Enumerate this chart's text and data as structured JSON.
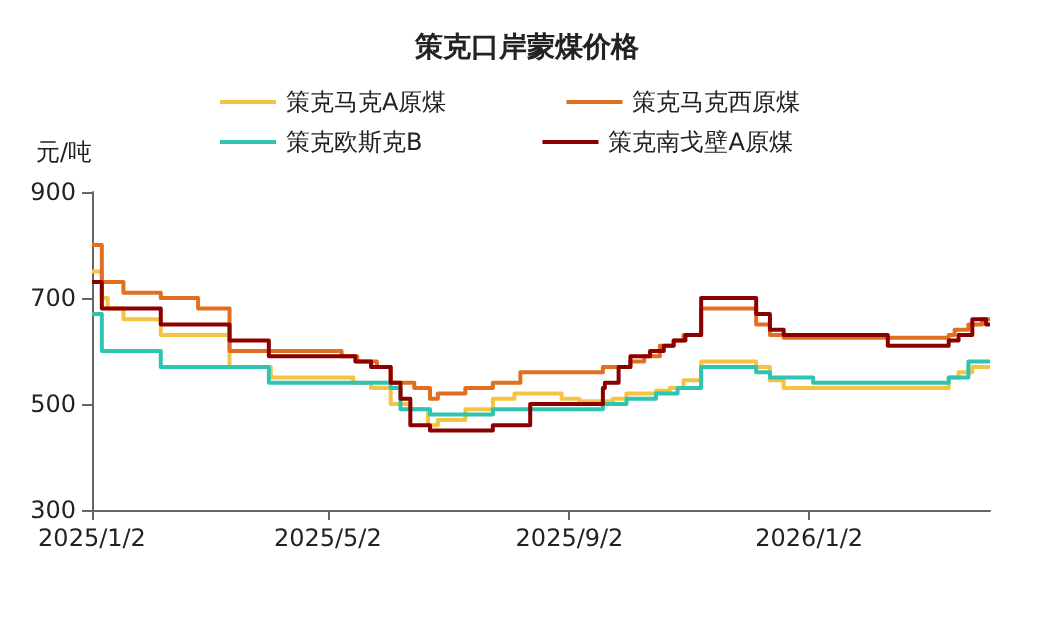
{
  "chart_data": {
    "type": "step",
    "title": "策克口岸蒙煤价格",
    "ylabel": "元/吨",
    "xlim": [
      "2025-01-02",
      "2026-04-04"
    ],
    "xticks": [
      {
        "value": "2025-01-02",
        "label": "2025/1/2"
      },
      {
        "value": "2025-05-02",
        "label": "2025/5/2"
      },
      {
        "value": "2025-09-02",
        "label": "2025/9/2"
      },
      {
        "value": "2026-01-02",
        "label": "2026/1/2"
      }
    ],
    "ylim": [
      300,
      900
    ],
    "yticks": [
      300,
      500,
      700,
      900
    ],
    "grid": false,
    "legend": "top",
    "marker": "none",
    "line_style": "solid",
    "series": [
      {
        "name": "策克马克A原煤",
        "color": "#f5c342",
        "x": [
          "2025-01-02",
          "2025-01-07",
          "2025-01-10",
          "2025-01-18",
          "2025-02-06",
          "2025-03-13",
          "2025-04-03",
          "2025-05-15",
          "2025-05-24",
          "2025-06-03",
          "2025-06-13",
          "2025-06-22",
          "2025-06-27",
          "2025-07-11",
          "2025-07-25",
          "2025-08-05",
          "2025-08-29",
          "2025-09-07",
          "2025-09-24",
          "2025-10-01",
          "2025-10-16",
          "2025-10-23",
          "2025-10-30",
          "2025-11-08",
          "2025-12-06",
          "2025-12-13",
          "2025-12-20",
          "2026-03-14",
          "2026-03-19",
          "2026-03-26",
          "2026-04-04"
        ],
        "values": [
          750,
          700,
          680,
          660,
          630,
          570,
          550,
          540,
          530,
          500,
          490,
          460,
          470,
          490,
          510,
          520,
          510,
          505,
          510,
          520,
          525,
          530,
          545,
          580,
          570,
          545,
          530,
          550,
          560,
          570,
          570
        ]
      },
      {
        "name": "策克马克西原煤",
        "color": "#e07020",
        "x": [
          "2025-01-02",
          "2025-01-07",
          "2025-01-18",
          "2025-02-06",
          "2025-02-25",
          "2025-03-13",
          "2025-05-09",
          "2025-05-17",
          "2025-05-27",
          "2025-06-03",
          "2025-06-15",
          "2025-06-23",
          "2025-06-27",
          "2025-07-11",
          "2025-07-25",
          "2025-08-08",
          "2025-09-19",
          "2025-10-03",
          "2025-10-10",
          "2025-10-18",
          "2025-10-25",
          "2025-10-30",
          "2025-11-08",
          "2025-12-06",
          "2025-12-13",
          "2025-12-20",
          "2026-03-14",
          "2026-03-17",
          "2026-03-24",
          "2026-03-31",
          "2026-04-04"
        ],
        "values": [
          800,
          730,
          710,
          700,
          680,
          600,
          590,
          580,
          570,
          540,
          530,
          510,
          520,
          530,
          540,
          560,
          570,
          580,
          590,
          610,
          620,
          630,
          680,
          650,
          630,
          625,
          630,
          640,
          650,
          660,
          660
        ]
      },
      {
        "name": "策克欧斯克B",
        "color": "#2ec4b0",
        "x": [
          "2025-01-02",
          "2025-01-07",
          "2025-02-06",
          "2025-04-02",
          "2025-06-03",
          "2025-06-08",
          "2025-06-23",
          "2025-07-25",
          "2025-09-19",
          "2025-10-01",
          "2025-10-16",
          "2025-10-27",
          "2025-11-08",
          "2025-12-06",
          "2025-12-13",
          "2026-01-04",
          "2026-03-14",
          "2026-03-24",
          "2026-04-04"
        ],
        "values": [
          670,
          600,
          570,
          540,
          530,
          490,
          480,
          490,
          500,
          510,
          520,
          530,
          570,
          560,
          550,
          540,
          550,
          580,
          580
        ]
      },
      {
        "name": "策克南戈壁A原煤",
        "color": "#8b0000",
        "x": [
          "2025-01-02",
          "2025-01-07",
          "2025-02-06",
          "2025-03-13",
          "2025-04-02",
          "2025-05-16",
          "2025-05-24",
          "2025-06-03",
          "2025-06-08",
          "2025-06-13",
          "2025-06-23",
          "2025-07-25",
          "2025-08-13",
          "2025-09-19",
          "2025-09-20",
          "2025-09-27",
          "2025-10-03",
          "2025-10-13",
          "2025-10-20",
          "2025-10-25",
          "2025-10-31",
          "2025-11-08",
          "2025-12-06",
          "2025-12-13",
          "2025-12-20",
          "2026-02-11",
          "2026-03-14",
          "2026-03-19",
          "2026-03-26",
          "2026-04-02",
          "2026-04-04"
        ],
        "values": [
          730,
          680,
          650,
          620,
          590,
          580,
          570,
          540,
          510,
          460,
          450,
          460,
          500,
          530,
          540,
          570,
          590,
          600,
          610,
          620,
          630,
          700,
          670,
          640,
          630,
          610,
          620,
          630,
          660,
          650,
          650
        ]
      }
    ]
  }
}
